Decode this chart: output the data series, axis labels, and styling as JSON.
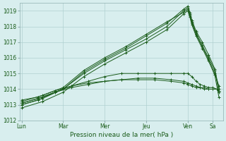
{
  "background_color": "#d8eeee",
  "grid_color": "#b0d0d0",
  "line_color": "#1a5c1a",
  "xlabel": "Pression niveau de la mer( hPa )",
  "ylim": [
    1012,
    1019.5
  ],
  "yticks": [
    1012,
    1013,
    1014,
    1015,
    1016,
    1017,
    1018,
    1019
  ],
  "day_labels": [
    "Lun",
    "Mar",
    "Mer",
    "Jeu",
    "Ven",
    "Sa"
  ],
  "day_positions": [
    0,
    1,
    2,
    3,
    4,
    4.6
  ],
  "xlim": [
    -0.05,
    4.85
  ],
  "series": [
    {
      "x": [
        0.0,
        0.5,
        1.0,
        1.5,
        2.0,
        2.5,
        3.0,
        3.5,
        3.9,
        4.0,
        4.05,
        4.1,
        4.2,
        4.35,
        4.5,
        4.65,
        4.75
      ],
      "y": [
        1013.0,
        1013.4,
        1014.0,
        1015.0,
        1015.8,
        1016.5,
        1017.2,
        1018.0,
        1019.0,
        1019.2,
        1018.8,
        1018.3,
        1017.6,
        1016.8,
        1016.0,
        1015.2,
        1013.8
      ]
    },
    {
      "x": [
        0.0,
        0.5,
        1.0,
        1.5,
        2.0,
        2.5,
        3.0,
        3.5,
        3.9,
        4.0,
        4.05,
        4.1,
        4.2,
        4.35,
        4.5,
        4.65,
        4.75
      ],
      "y": [
        1013.1,
        1013.5,
        1014.0,
        1015.1,
        1015.9,
        1016.6,
        1017.4,
        1018.2,
        1019.1,
        1019.3,
        1018.9,
        1018.4,
        1017.7,
        1017.0,
        1016.2,
        1015.3,
        1014.0
      ]
    },
    {
      "x": [
        0.0,
        0.5,
        1.0,
        1.5,
        2.0,
        2.5,
        3.0,
        3.5,
        3.9,
        4.0,
        4.05,
        4.1,
        4.2,
        4.35,
        4.5,
        4.65,
        4.75
      ],
      "y": [
        1012.8,
        1013.2,
        1013.8,
        1014.8,
        1015.6,
        1016.3,
        1017.0,
        1017.8,
        1018.8,
        1019.0,
        1018.6,
        1018.1,
        1017.4,
        1016.6,
        1015.8,
        1014.9,
        1013.5
      ]
    },
    {
      "x": [
        0.0,
        0.5,
        1.0,
        1.5,
        2.0,
        2.5,
        3.0,
        3.5,
        3.9,
        4.0,
        4.05,
        4.1,
        4.2,
        4.35,
        4.5,
        4.65,
        4.75
      ],
      "y": [
        1013.2,
        1013.6,
        1014.1,
        1015.2,
        1016.0,
        1016.7,
        1017.5,
        1018.3,
        1018.9,
        1019.1,
        1018.7,
        1018.2,
        1017.5,
        1016.7,
        1015.9,
        1015.0,
        1014.2
      ]
    },
    {
      "x": [
        0.0,
        0.4,
        0.8,
        1.2,
        1.6,
        2.0,
        2.4,
        2.8,
        3.2,
        3.6,
        3.9,
        4.0,
        4.1,
        4.2,
        4.3,
        4.4,
        4.5,
        4.6,
        4.7,
        4.75
      ],
      "y": [
        1013.0,
        1013.3,
        1013.8,
        1014.2,
        1014.5,
        1014.8,
        1015.0,
        1015.0,
        1015.0,
        1015.0,
        1015.0,
        1015.0,
        1014.8,
        1014.5,
        1014.3,
        1014.2,
        1014.1,
        1014.1,
        1014.0,
        1013.9
      ]
    },
    {
      "x": [
        0.0,
        0.4,
        0.8,
        1.2,
        1.6,
        2.0,
        2.4,
        2.8,
        3.2,
        3.6,
        3.9,
        4.0,
        4.1,
        4.2,
        4.3,
        4.4,
        4.5,
        4.6,
        4.7,
        4.75
      ],
      "y": [
        1013.1,
        1013.4,
        1013.8,
        1014.1,
        1014.3,
        1014.5,
        1014.6,
        1014.7,
        1014.7,
        1014.6,
        1014.5,
        1014.4,
        1014.3,
        1014.2,
        1014.1,
        1014.1,
        1014.0,
        1014.0,
        1014.0,
        1013.9
      ]
    },
    {
      "x": [
        0.0,
        0.4,
        0.8,
        1.2,
        1.6,
        2.0,
        2.4,
        2.8,
        3.2,
        3.6,
        3.9,
        4.0,
        4.1,
        4.2,
        4.3,
        4.4,
        4.5,
        4.6,
        4.7,
        4.75
      ],
      "y": [
        1013.3,
        1013.5,
        1013.9,
        1014.2,
        1014.4,
        1014.5,
        1014.6,
        1014.6,
        1014.6,
        1014.5,
        1014.4,
        1014.3,
        1014.2,
        1014.1,
        1014.1,
        1014.0,
        1014.0,
        1014.0,
        1014.0,
        1013.9
      ]
    }
  ]
}
